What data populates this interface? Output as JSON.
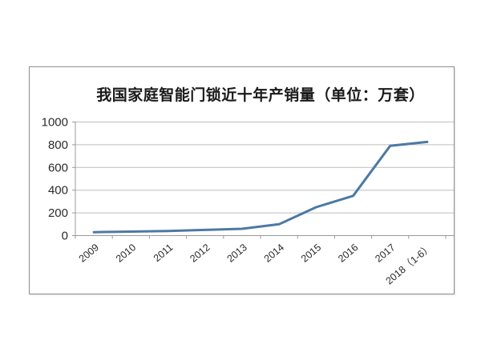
{
  "chart_data": {
    "type": "line",
    "title": "我国家庭智能门锁近十年产销量（单位：万套）",
    "categories": [
      "2009",
      "2010",
      "2011",
      "2012",
      "2013",
      "2014",
      "2015",
      "2016",
      "2017",
      "2018（1-6）"
    ],
    "values": [
      30,
      35,
      40,
      50,
      60,
      100,
      250,
      350,
      790,
      825
    ],
    "series_name": "产销量",
    "xlabel": "",
    "ylabel": "",
    "ylim": [
      0,
      1000
    ],
    "yticks": [
      0,
      200,
      400,
      600,
      800,
      1000
    ],
    "grid": "horizontal",
    "legend_position": "none",
    "colors": {
      "line": "#4d79a4",
      "grid": "#bdbdbd",
      "axis": "#9a9a9a",
      "tick": "#9a9a9a",
      "label": "#2b2b2b",
      "panel_border": "#8f8f8f",
      "background": "#ffffff"
    }
  }
}
